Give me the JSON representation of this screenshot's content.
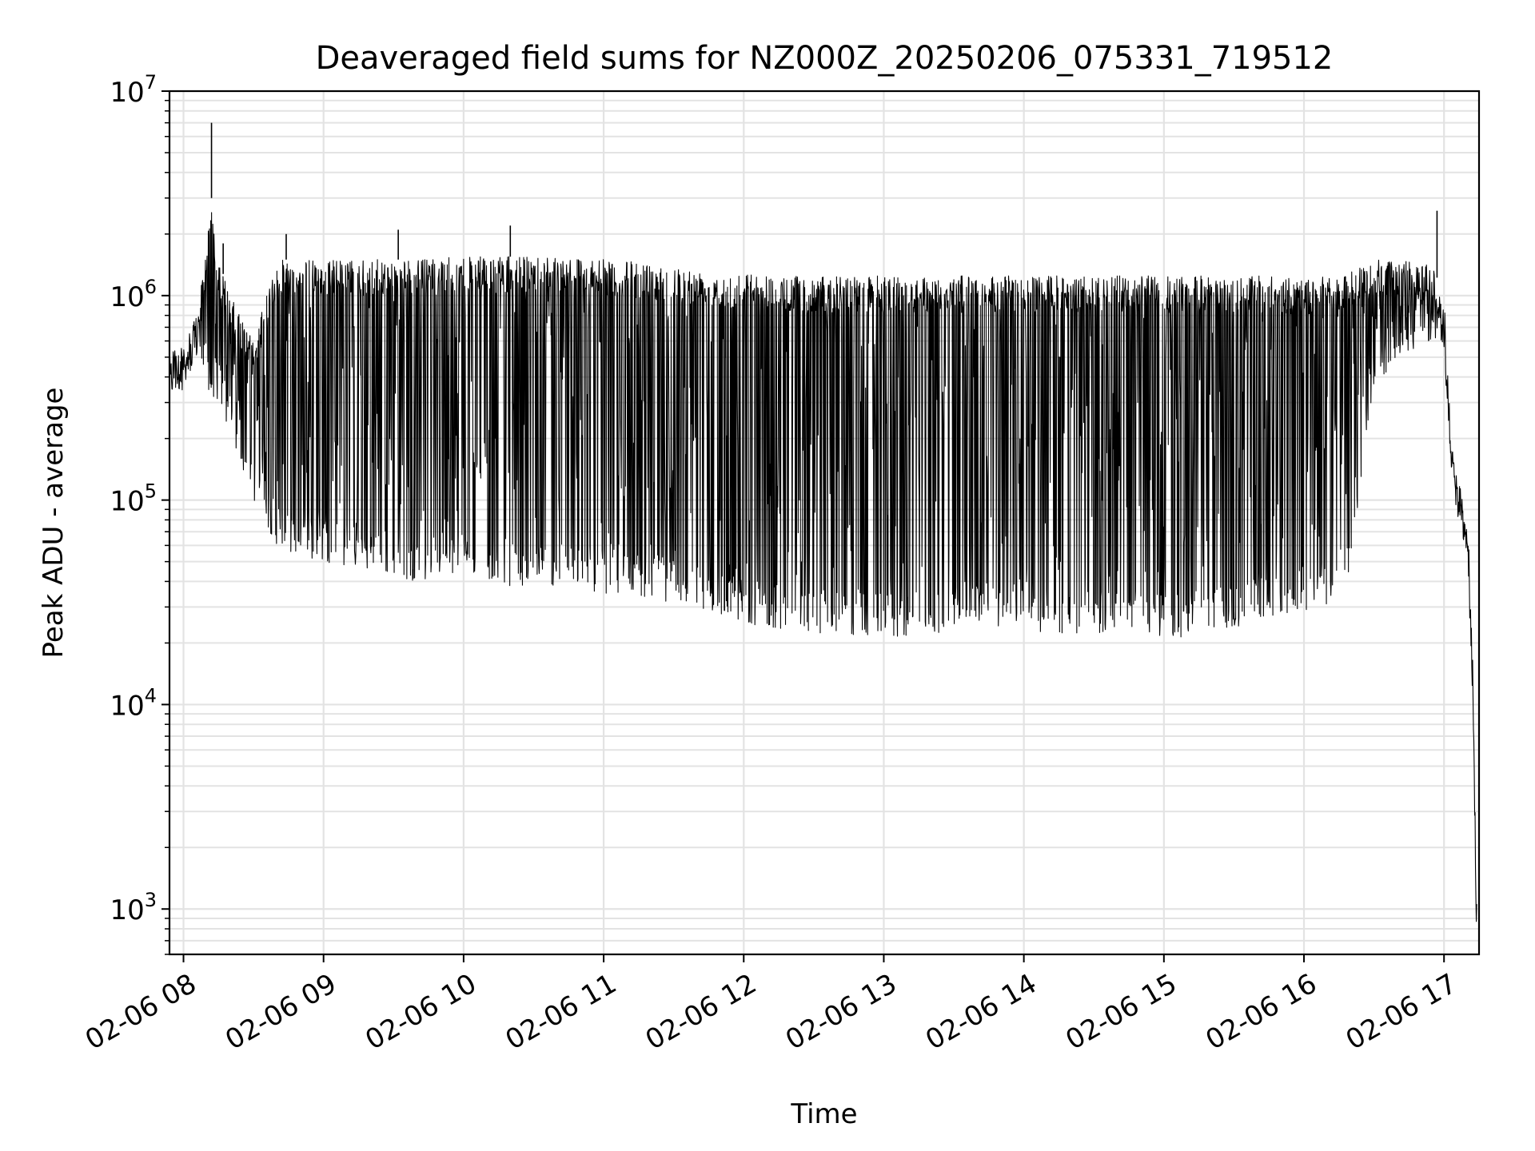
{
  "chart_data": {
    "type": "line",
    "title": "Deaveraged field sums for NZ000Z_20250206_075331_719512",
    "xlabel": "Time",
    "ylabel": "Peak ADU - average",
    "yscale": "log",
    "ylim": [
      600,
      10000000
    ],
    "xlim": [
      "2025-02-06 07:54",
      "2025-02-06 17:15"
    ],
    "grid": true,
    "x_ticks": [
      "02-06 08",
      "02-06 09",
      "02-06 10",
      "02-06 11",
      "02-06 12",
      "02-06 13",
      "02-06 14",
      "02-06 15",
      "02-06 16",
      "02-06 17"
    ],
    "y_ticks": [
      {
        "base": "10",
        "exp": "3"
      },
      {
        "base": "10",
        "exp": "4"
      },
      {
        "base": "10",
        "exp": "5"
      },
      {
        "base": "10",
        "exp": "6"
      },
      {
        "base": "10",
        "exp": "7"
      }
    ],
    "series": [
      {
        "color": "#000000",
        "envelope": {
          "x": [
            "07:54",
            "08:00",
            "08:05",
            "08:08",
            "08:12",
            "08:15",
            "08:20",
            "08:30",
            "08:40",
            "08:50",
            "09:00",
            "09:20",
            "09:40",
            "10:00",
            "10:20",
            "10:40",
            "11:00",
            "11:20",
            "11:40",
            "12:00",
            "12:20",
            "12:40",
            "13:00",
            "13:20",
            "13:40",
            "14:00",
            "14:20",
            "14:40",
            "15:00",
            "15:20",
            "15:40",
            "16:00",
            "16:10",
            "16:20",
            "16:30",
            "16:40",
            "16:55",
            "17:00",
            "17:03",
            "17:06",
            "17:10",
            "17:12",
            "17:14"
          ],
          "upper": [
            600000,
            550000,
            700000,
            1200000,
            3000000,
            1500000,
            1000000,
            600000,
            1500000,
            1500000,
            1500000,
            1500000,
            1500000,
            1550000,
            1550000,
            1600000,
            1500000,
            1450000,
            1350000,
            1300000,
            1250000,
            1250000,
            1250000,
            1250000,
            1250000,
            1250000,
            1250000,
            1250000,
            1250000,
            1250000,
            1250000,
            1200000,
            1250000,
            1300000,
            1500000,
            1500000,
            1400000,
            1000000,
            200000,
            120000,
            80000,
            20000,
            800
          ],
          "lower": [
            300000,
            350000,
            500000,
            400000,
            300000,
            300000,
            200000,
            100000,
            60000,
            50000,
            50000,
            45000,
            40000,
            45000,
            38000,
            38000,
            35000,
            33000,
            30000,
            25000,
            23000,
            22000,
            21000,
            22000,
            25000,
            23000,
            22000,
            22000,
            21000,
            22000,
            25000,
            28000,
            30000,
            45000,
            350000,
            500000,
            600000,
            500000,
            150000,
            100000,
            60000,
            15000,
            700
          ]
        },
        "spikes": [
          {
            "x": "08:12",
            "y": 7000000
          },
          {
            "x": "08:17",
            "y": 1800000
          },
          {
            "x": "08:44",
            "y": 2000000
          },
          {
            "x": "09:32",
            "y": 2100000
          },
          {
            "x": "10:20",
            "y": 2200000
          },
          {
            "x": "16:57",
            "y": 2600000
          }
        ]
      }
    ]
  }
}
